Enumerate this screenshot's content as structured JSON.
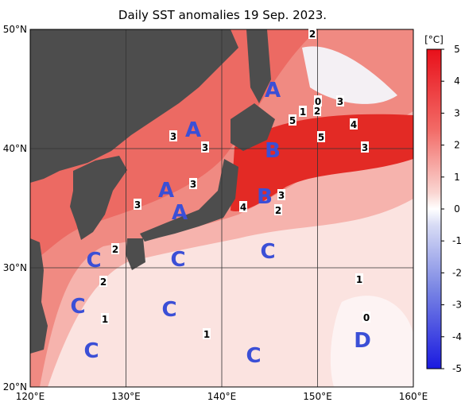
{
  "title": "Daily SST anomalies 19 Sep. 2023.",
  "lon_labels": [
    "120°E",
    "130°E",
    "140°E",
    "150°E",
    "160°E"
  ],
  "lat_labels": [
    "50°N",
    "40°N",
    "30°N",
    "20°N"
  ],
  "colorbar": {
    "unit": "[°C]",
    "ticks": [
      "5",
      "4",
      "3",
      "2",
      "1",
      "0",
      "-1",
      "-2",
      "-3",
      "-4",
      "-5"
    ]
  },
  "region_labels": [
    "A",
    "A",
    "A",
    "A",
    "B",
    "B",
    "C",
    "C",
    "C",
    "C",
    "C",
    "C",
    "C",
    "D"
  ],
  "contour_labels": [
    "2",
    "3",
    "3",
    "3",
    "3",
    "1",
    "0",
    "3",
    "5",
    "2",
    "4",
    "5",
    "3",
    "3",
    "4",
    "2",
    "2",
    "2",
    "1",
    "1",
    "1",
    "0"
  ]
}
